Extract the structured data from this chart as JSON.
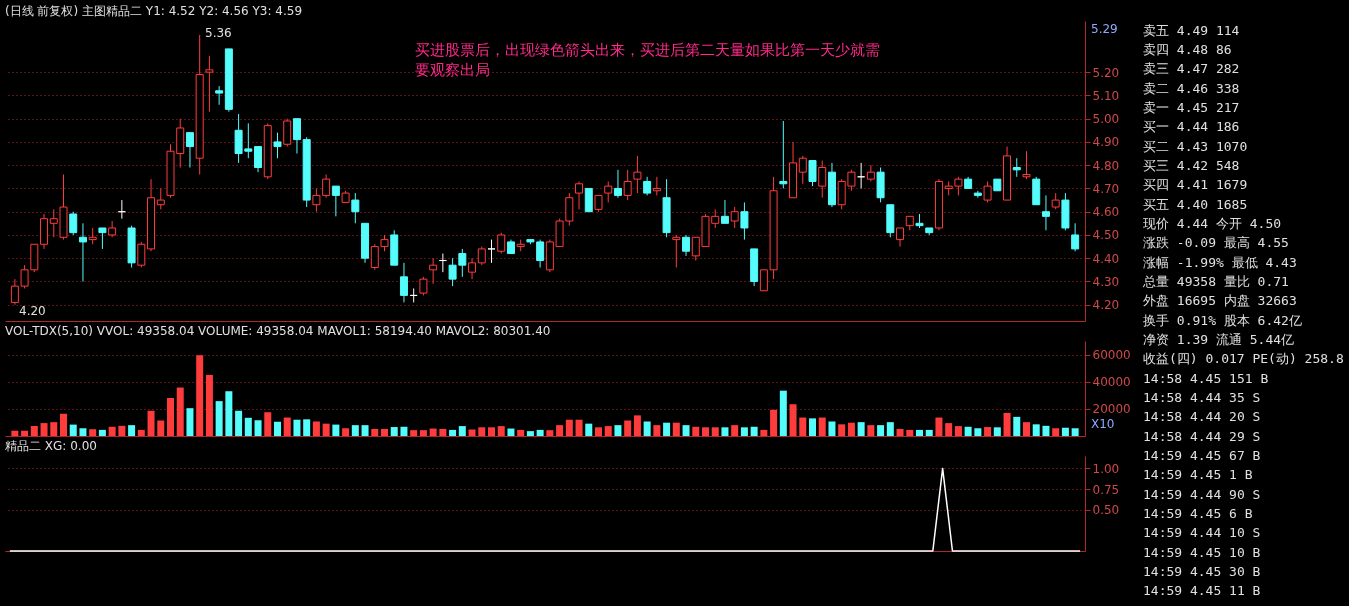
{
  "chart_data": [
    {
      "type": "candlestick",
      "title": "(日线 前复权) 主图精品二  Y1: 4.52  Y2: 4.56  Y3: 4.59",
      "categories": [
        null,
        null,
        null,
        null,
        null,
        null,
        null,
        null,
        null,
        null,
        null,
        null,
        null,
        null,
        null,
        null,
        null,
        null,
        null,
        null,
        null,
        null,
        null,
        null,
        null,
        null,
        null,
        null,
        null,
        null,
        null,
        null,
        null,
        null,
        null,
        null,
        null,
        null,
        null,
        null,
        null,
        null,
        null,
        null,
        null,
        null,
        null,
        null,
        null,
        null,
        null,
        null,
        null,
        null,
        null,
        null,
        null,
        null,
        null,
        null,
        null,
        null,
        null,
        null,
        null,
        null,
        null,
        null,
        null,
        null,
        null,
        null,
        null,
        null,
        null,
        null,
        null,
        null,
        null,
        null,
        null,
        null,
        null,
        null,
        null,
        null,
        null,
        null,
        null,
        null,
        null,
        null,
        null,
        null,
        null,
        null,
        null,
        null,
        null,
        null,
        null,
        null,
        null,
        null,
        null,
        null,
        null,
        null,
        null,
        null
      ],
      "ohlc": [
        [
          4.21,
          4.31,
          4.2,
          4.28
        ],
        [
          4.28,
          4.37,
          4.27,
          4.35
        ],
        [
          4.35,
          4.46,
          4.34,
          4.46
        ],
        [
          4.46,
          4.59,
          4.44,
          4.57
        ],
        [
          4.55,
          4.61,
          4.49,
          4.57
        ],
        [
          4.49,
          4.76,
          4.48,
          4.62
        ],
        [
          4.59,
          4.6,
          4.5,
          4.51
        ],
        [
          4.49,
          4.55,
          4.3,
          4.47
        ],
        [
          4.48,
          4.53,
          4.46,
          4.49
        ],
        [
          4.53,
          4.53,
          4.44,
          4.51
        ],
        [
          4.5,
          4.56,
          4.49,
          4.53
        ],
        [
          4.6,
          4.65,
          4.57,
          4.6
        ],
        [
          4.53,
          4.54,
          4.36,
          4.38
        ],
        [
          4.37,
          4.47,
          4.36,
          4.46
        ],
        [
          4.44,
          4.74,
          4.43,
          4.66
        ],
        [
          4.63,
          4.7,
          4.61,
          4.65
        ],
        [
          4.67,
          4.89,
          4.66,
          4.86
        ],
        [
          4.85,
          5.0,
          4.79,
          4.96
        ],
        [
          4.94,
          4.94,
          4.79,
          4.88
        ],
        [
          4.83,
          5.36,
          4.76,
          5.19
        ],
        [
          5.2,
          5.27,
          5.03,
          5.21
        ],
        [
          5.12,
          5.14,
          5.06,
          5.11
        ],
        [
          5.3,
          5.3,
          5.03,
          5.04
        ],
        [
          4.95,
          5.02,
          4.81,
          4.85
        ],
        [
          4.87,
          4.98,
          4.83,
          4.86
        ],
        [
          4.88,
          4.88,
          4.77,
          4.79
        ],
        [
          4.75,
          4.98,
          4.74,
          4.97
        ],
        [
          4.9,
          4.94,
          4.83,
          4.88
        ],
        [
          4.89,
          5.0,
          4.88,
          4.99
        ],
        [
          5.0,
          5.0,
          4.85,
          4.91
        ],
        [
          4.91,
          4.92,
          4.62,
          4.65
        ],
        [
          4.63,
          4.7,
          4.6,
          4.67
        ],
        [
          4.67,
          4.76,
          4.66,
          4.74
        ],
        [
          4.71,
          4.71,
          4.58,
          4.67
        ],
        [
          4.64,
          4.69,
          4.64,
          4.68
        ],
        [
          4.65,
          4.68,
          4.55,
          4.6
        ],
        [
          4.55,
          4.55,
          4.38,
          4.4
        ],
        [
          4.36,
          4.46,
          4.35,
          4.45
        ],
        [
          4.45,
          4.5,
          4.43,
          4.48
        ],
        [
          4.5,
          4.52,
          4.37,
          4.37
        ],
        [
          4.32,
          4.38,
          4.21,
          4.24
        ],
        [
          4.24,
          4.27,
          4.21,
          4.24
        ],
        [
          4.25,
          4.32,
          4.24,
          4.31
        ],
        [
          4.35,
          4.4,
          4.29,
          4.37
        ],
        [
          4.39,
          4.42,
          4.34,
          4.39
        ],
        [
          4.37,
          4.4,
          4.28,
          4.31
        ],
        [
          4.42,
          4.44,
          4.32,
          4.37
        ],
        [
          4.34,
          4.4,
          4.31,
          4.38
        ],
        [
          4.38,
          4.45,
          4.37,
          4.44
        ],
        [
          4.44,
          4.48,
          4.38,
          4.44
        ],
        [
          4.43,
          4.51,
          4.42,
          4.5
        ],
        [
          4.47,
          4.48,
          4.42,
          4.42
        ],
        [
          4.45,
          4.48,
          4.43,
          4.46
        ],
        [
          4.48,
          4.48,
          4.46,
          4.47
        ],
        [
          4.47,
          4.48,
          4.36,
          4.39
        ],
        [
          4.35,
          4.48,
          4.34,
          4.47
        ],
        [
          4.45,
          4.57,
          4.45,
          4.56
        ],
        [
          4.56,
          4.68,
          4.54,
          4.66
        ],
        [
          4.68,
          4.73,
          4.61,
          4.72
        ],
        [
          4.7,
          4.7,
          4.6,
          4.6
        ],
        [
          4.61,
          4.67,
          4.6,
          4.67
        ],
        [
          4.68,
          4.73,
          4.64,
          4.71
        ],
        [
          4.7,
          4.78,
          4.66,
          4.67
        ],
        [
          4.67,
          4.78,
          4.65,
          4.73
        ],
        [
          4.74,
          4.84,
          4.68,
          4.77
        ],
        [
          4.73,
          4.75,
          4.67,
          4.68
        ],
        [
          4.69,
          4.75,
          4.67,
          4.7
        ],
        [
          4.66,
          4.74,
          4.49,
          4.51
        ],
        [
          4.48,
          4.5,
          4.36,
          4.49
        ],
        [
          4.49,
          4.5,
          4.41,
          4.43
        ],
        [
          4.41,
          4.49,
          4.39,
          4.49
        ],
        [
          4.45,
          4.59,
          4.45,
          4.58
        ],
        [
          4.55,
          4.61,
          4.53,
          4.58
        ],
        [
          4.58,
          4.65,
          4.55,
          4.55
        ],
        [
          4.56,
          4.62,
          4.53,
          4.6
        ],
        [
          4.6,
          4.64,
          4.48,
          4.53
        ],
        [
          4.44,
          4.44,
          4.28,
          4.3
        ],
        [
          4.26,
          4.35,
          4.26,
          4.35
        ],
        [
          4.35,
          4.75,
          4.31,
          4.69
        ],
        [
          4.73,
          4.99,
          4.7,
          4.72
        ],
        [
          4.66,
          4.9,
          4.66,
          4.81
        ],
        [
          4.77,
          4.84,
          4.72,
          4.83
        ],
        [
          4.82,
          4.82,
          4.71,
          4.73
        ],
        [
          4.71,
          4.82,
          4.66,
          4.79
        ],
        [
          4.77,
          4.81,
          4.62,
          4.63
        ],
        [
          4.63,
          4.74,
          4.61,
          4.73
        ],
        [
          4.71,
          4.78,
          4.69,
          4.77
        ],
        [
          4.75,
          4.81,
          4.7,
          4.75
        ],
        [
          4.74,
          4.8,
          4.73,
          4.77
        ],
        [
          4.77,
          4.79,
          4.64,
          4.66
        ],
        [
          4.63,
          4.63,
          4.49,
          4.51
        ],
        [
          4.48,
          4.53,
          4.45,
          4.53
        ],
        [
          4.54,
          4.58,
          4.52,
          4.58
        ],
        [
          4.55,
          4.59,
          4.53,
          4.54
        ],
        [
          4.53,
          4.53,
          4.5,
          4.51
        ],
        [
          4.53,
          4.74,
          4.52,
          4.73
        ],
        [
          4.7,
          4.73,
          4.67,
          4.71
        ],
        [
          4.71,
          4.75,
          4.67,
          4.74
        ],
        [
          4.74,
          4.75,
          4.7,
          4.7
        ],
        [
          4.68,
          4.69,
          4.66,
          4.67
        ],
        [
          4.65,
          4.73,
          4.64,
          4.71
        ],
        [
          4.74,
          4.74,
          4.69,
          4.69
        ],
        [
          4.65,
          4.88,
          4.65,
          4.84
        ],
        [
          4.79,
          4.83,
          4.75,
          4.78
        ],
        [
          4.75,
          4.86,
          4.74,
          4.76
        ],
        [
          4.74,
          4.75,
          4.63,
          4.63
        ],
        [
          4.6,
          4.67,
          4.52,
          4.58
        ],
        [
          4.62,
          4.68,
          4.61,
          4.65
        ],
        [
          4.65,
          4.68,
          4.52,
          4.53
        ],
        [
          4.5,
          4.55,
          4.43,
          4.44
        ]
      ],
      "colors": [
        "#ff3c3c",
        "#ff3c3c",
        "#ff3c3c",
        "#ff3c3c",
        "#ff3c3c",
        "#ff3c3c",
        "#54fcfc",
        "#54fcfc",
        "#ff3c3c",
        "#54fcfc",
        "#ff3c3c",
        "#ffffff",
        "#54fcfc",
        "#ff3c3c",
        "#ff3c3c",
        "#ff3c3c",
        "#ff3c3c",
        "#ff3c3c",
        "#54fcfc",
        "#ff3c3c",
        "#ff3c3c",
        "#54fcfc",
        "#54fcfc",
        "#54fcfc",
        "#54fcfc",
        "#54fcfc",
        "#ff3c3c",
        "#54fcfc",
        "#ff3c3c",
        "#54fcfc",
        "#54fcfc",
        "#ff3c3c",
        "#ff3c3c",
        "#54fcfc",
        "#ff3c3c",
        "#54fcfc",
        "#54fcfc",
        "#ff3c3c",
        "#ff3c3c",
        "#54fcfc",
        "#54fcfc",
        "#ffffff",
        "#ff3c3c",
        "#ff3c3c",
        "#ffffff",
        "#54fcfc",
        "#54fcfc",
        "#ff3c3c",
        "#ff3c3c",
        "#ffffff",
        "#ff3c3c",
        "#54fcfc",
        "#ff3c3c",
        "#54fcfc",
        "#54fcfc",
        "#ff3c3c",
        "#ff3c3c",
        "#ff3c3c",
        "#ff3c3c",
        "#54fcfc",
        "#ff3c3c",
        "#ff3c3c",
        "#54fcfc",
        "#ff3c3c",
        "#ff3c3c",
        "#54fcfc",
        "#ff3c3c",
        "#54fcfc",
        "#ff3c3c",
        "#54fcfc",
        "#ff3c3c",
        "#ff3c3c",
        "#ff3c3c",
        "#54fcfc",
        "#ff3c3c",
        "#54fcfc",
        "#54fcfc",
        "#ff3c3c",
        "#ff3c3c",
        "#54fcfc",
        "#ff3c3c",
        "#ff3c3c",
        "#54fcfc",
        "#ff3c3c",
        "#54fcfc",
        "#ff3c3c",
        "#ff3c3c",
        "#ffffff",
        "#ff3c3c",
        "#54fcfc",
        "#54fcfc",
        "#ff3c3c",
        "#ff3c3c",
        "#54fcfc",
        "#54fcfc",
        "#ff3c3c",
        "#ff3c3c",
        "#ff3c3c",
        "#54fcfc",
        "#54fcfc",
        "#ff3c3c",
        "#54fcfc",
        "#ff3c3c",
        "#54fcfc",
        "#ff3c3c",
        "#54fcfc",
        "#54fcfc",
        "#ff3c3c",
        "#54fcfc",
        "#54fcfc"
      ],
      "ylim": [
        4.13,
        5.42
      ],
      "yticks": [
        {
          "value": 4.2,
          "label": "4.20"
        },
        {
          "value": 4.3,
          "label": "4.30"
        },
        {
          "value": 4.4,
          "label": "4.40"
        },
        {
          "value": 4.5,
          "label": "4.50"
        },
        {
          "value": 4.6,
          "label": "4.60"
        },
        {
          "value": 4.7,
          "label": "4.70"
        },
        {
          "value": 4.8,
          "label": "4.80"
        },
        {
          "value": 4.9,
          "label": "4.90"
        },
        {
          "value": 5.0,
          "label": "5.00"
        },
        {
          "value": 5.1,
          "label": "5.10"
        },
        {
          "value": 5.2,
          "label": "5.20"
        }
      ],
      "grid": "y",
      "tick_labels": "y",
      "annotations": [
        "买进股票后，出现绿色箭头出来，买进后第二天量如果比第一天少就需要观察出局",
        "5.29",
        "5.36",
        "4.20"
      ]
    },
    {
      "type": "bar",
      "title": "VOL-TDX(5,10)  VVOL: 49358.04  VOLUME: 49358.04  MAVOL1: 58194.40  MAVOL2: 80301.40",
      "categories": [
        null,
        null,
        null,
        null,
        null,
        null,
        null,
        null,
        null,
        null,
        null,
        null,
        null,
        null,
        null,
        null,
        null,
        null,
        null,
        null,
        null,
        null,
        null,
        null,
        null,
        null,
        null,
        null,
        null,
        null,
        null,
        null,
        null,
        null,
        null,
        null,
        null,
        null,
        null,
        null,
        null,
        null,
        null,
        null,
        null,
        null,
        null,
        null,
        null,
        null,
        null,
        null,
        null,
        null,
        null,
        null,
        null,
        null,
        null,
        null,
        null,
        null,
        null,
        null,
        null,
        null,
        null,
        null,
        null,
        null,
        null,
        null,
        null,
        null,
        null,
        null,
        null,
        null,
        null,
        null,
        null,
        null,
        null,
        null,
        null,
        null,
        null,
        null,
        null,
        null,
        null,
        null,
        null,
        null,
        null,
        null,
        null,
        null,
        null,
        null,
        null,
        null,
        null,
        null,
        null,
        null,
        null,
        null,
        null,
        null
      ],
      "values": [
        3900,
        3900,
        7300,
        9500,
        10200,
        16400,
        8400,
        5700,
        5000,
        4500,
        6800,
        7500,
        8000,
        4500,
        18600,
        11400,
        28000,
        35700,
        20500,
        59500,
        45000,
        25700,
        33000,
        18600,
        13400,
        11600,
        17500,
        10500,
        13600,
        12000,
        12300,
        10700,
        9100,
        8400,
        5700,
        8000,
        8000,
        5200,
        5200,
        6600,
        6800,
        4300,
        4300,
        5500,
        5200,
        4500,
        7300,
        4800,
        6400,
        6400,
        7300,
        5500,
        4500,
        3600,
        4500,
        4300,
        8000,
        12000,
        12000,
        9100,
        6400,
        7300,
        8000,
        11400,
        15200,
        10700,
        8000,
        9800,
        9800,
        8000,
        6800,
        6400,
        6400,
        6400,
        8000,
        6400,
        6800,
        4500,
        19300,
        33400,
        23400,
        13600,
        13000,
        13600,
        10700,
        8600,
        9800,
        10200,
        8000,
        8000,
        10200,
        5200,
        4500,
        4500,
        4500,
        13600,
        9500,
        7300,
        6800,
        5700,
        6600,
        6400,
        17000,
        14100,
        10200,
        8600,
        7500,
        5700,
        6100,
        5700
      ],
      "colors": [
        "#ff3c3c",
        "#ff3c3c",
        "#ff3c3c",
        "#ff3c3c",
        "#ff3c3c",
        "#ff3c3c",
        "#54fcfc",
        "#54fcfc",
        "#ff3c3c",
        "#54fcfc",
        "#ff3c3c",
        "#ff3c3c",
        "#54fcfc",
        "#ff3c3c",
        "#ff3c3c",
        "#ff3c3c",
        "#ff3c3c",
        "#ff3c3c",
        "#54fcfc",
        "#ff3c3c",
        "#ff3c3c",
        "#54fcfc",
        "#54fcfc",
        "#54fcfc",
        "#54fcfc",
        "#54fcfc",
        "#ff3c3c",
        "#54fcfc",
        "#ff3c3c",
        "#54fcfc",
        "#54fcfc",
        "#ff3c3c",
        "#ff3c3c",
        "#54fcfc",
        "#ff3c3c",
        "#54fcfc",
        "#54fcfc",
        "#ff3c3c",
        "#ff3c3c",
        "#54fcfc",
        "#54fcfc",
        "#ff3c3c",
        "#ff3c3c",
        "#ff3c3c",
        "#ff3c3c",
        "#54fcfc",
        "#54fcfc",
        "#ff3c3c",
        "#ff3c3c",
        "#ff3c3c",
        "#ff3c3c",
        "#54fcfc",
        "#ff3c3c",
        "#54fcfc",
        "#54fcfc",
        "#ff3c3c",
        "#ff3c3c",
        "#ff3c3c",
        "#ff3c3c",
        "#54fcfc",
        "#ff3c3c",
        "#ff3c3c",
        "#54fcfc",
        "#ff3c3c",
        "#ff3c3c",
        "#54fcfc",
        "#ff3c3c",
        "#54fcfc",
        "#ff3c3c",
        "#54fcfc",
        "#ff3c3c",
        "#ff3c3c",
        "#ff3c3c",
        "#54fcfc",
        "#ff3c3c",
        "#54fcfc",
        "#54fcfc",
        "#ff3c3c",
        "#ff3c3c",
        "#54fcfc",
        "#ff3c3c",
        "#ff3c3c",
        "#54fcfc",
        "#ff3c3c",
        "#54fcfc",
        "#ff3c3c",
        "#ff3c3c",
        "#54fcfc",
        "#ff3c3c",
        "#54fcfc",
        "#54fcfc",
        "#ff3c3c",
        "#ff3c3c",
        "#54fcfc",
        "#54fcfc",
        "#ff3c3c",
        "#ff3c3c",
        "#ff3c3c",
        "#54fcfc",
        "#54fcfc",
        "#ff3c3c",
        "#54fcfc",
        "#ff3c3c",
        "#54fcfc",
        "#ff3c3c",
        "#54fcfc",
        "#54fcfc",
        "#ff3c3c",
        "#54fcfc",
        "#54fcfc"
      ],
      "ylim": [
        0,
        70000
      ],
      "yticks": [
        20000,
        40000,
        60000
      ],
      "grid": "y",
      "tick_labels": "y",
      "annotations": [
        "X10"
      ]
    },
    {
      "type": "line",
      "title": "精品二  XG: 0.00",
      "categories": [
        null,
        null,
        null,
        null,
        null,
        null,
        null,
        null,
        null,
        null,
        null,
        null,
        null,
        null,
        null,
        null,
        null,
        null,
        null,
        null,
        null,
        null,
        null,
        null,
        null,
        null,
        null,
        null,
        null,
        null,
        null,
        null,
        null,
        null,
        null,
        null,
        null,
        null,
        null,
        null,
        null,
        null,
        null,
        null,
        null,
        null,
        null,
        null,
        null,
        null,
        null,
        null,
        null,
        null,
        null,
        null,
        null,
        null,
        null,
        null,
        null,
        null,
        null,
        null,
        null,
        null,
        null,
        null,
        null,
        null,
        null,
        null,
        null,
        null,
        null,
        null,
        null,
        null,
        null,
        null,
        null,
        null,
        null,
        null,
        null,
        null,
        null,
        null,
        null,
        null,
        null,
        null,
        null,
        null,
        null,
        null,
        null,
        null,
        null,
        null,
        null,
        null,
        null,
        null,
        null,
        null,
        null,
        null,
        null,
        null
      ],
      "series": [
        {
          "color": "#ffffff",
          "values": [
            0,
            0,
            0,
            0,
            0,
            0,
            0,
            0,
            0,
            0,
            0,
            0,
            0,
            0,
            0,
            0,
            0,
            0,
            0,
            0,
            0,
            0,
            0,
            0,
            0,
            0,
            0,
            0,
            0,
            0,
            0,
            0,
            0,
            0,
            0,
            0,
            0,
            0,
            0,
            0,
            0,
            0,
            0,
            0,
            0,
            0,
            0,
            0,
            0,
            0,
            0,
            0,
            0,
            0,
            0,
            0,
            0,
            0,
            0,
            0,
            0,
            0,
            0,
            0,
            0,
            0,
            0,
            0,
            0,
            0,
            0,
            0,
            0,
            0,
            0,
            0,
            0,
            0,
            0,
            0,
            0,
            0,
            0,
            0,
            0,
            0,
            0,
            0,
            0,
            0,
            0,
            0,
            0,
            0,
            0,
            1,
            0,
            0,
            0,
            0,
            0,
            0,
            0,
            0,
            0,
            0,
            0,
            0,
            0,
            0
          ]
        }
      ],
      "ylim": [
        0,
        1.15
      ],
      "yticks": [
        {
          "value": 0.5,
          "label": "0.50"
        },
        {
          "value": 0.75,
          "label": "0.75"
        },
        {
          "value": 1,
          "label": "1.00"
        }
      ],
      "grid": "y",
      "tick_labels": "y"
    },
    {
      "type": "other",
      "annotations": [
        "卖五  4.49   114",
        "卖四  4.48    86",
        "卖三  4.47   282",
        "卖二  4.46   338",
        "卖一  4.45   217",
        "买一  4.44   186",
        "买二  4.43  1070",
        "买三  4.42   548",
        "买四  4.41  1679",
        "买五  4.40  1685",
        "现价  4.44 今开  4.50",
        "涨跌 -0.09 最高  4.55",
        "涨幅 -1.99% 最低  4.43",
        "总量 49358 量比  0.71",
        "外盘 16695 内盘 32663",
        "换手 0.91% 股本 6.42亿",
        "净资  1.39 流通 5.44亿",
        "收益(四) 0.017 PE(动) 258.8",
        "14:58  4.45  151 B",
        "14:58  4.44   35 S",
        "14:58  4.44   20 S",
        "14:58  4.44   29 S",
        "14:59  4.45   67 B",
        "14:59  4.45    1 B",
        "14:59  4.44   90 S",
        "14:59  4.45    6 B",
        "14:59  4.44   10 S",
        "14:59  4.45   10 B",
        "14:59  4.45   30 B",
        "14:59  4.45   11 B"
      ]
    }
  ]
}
